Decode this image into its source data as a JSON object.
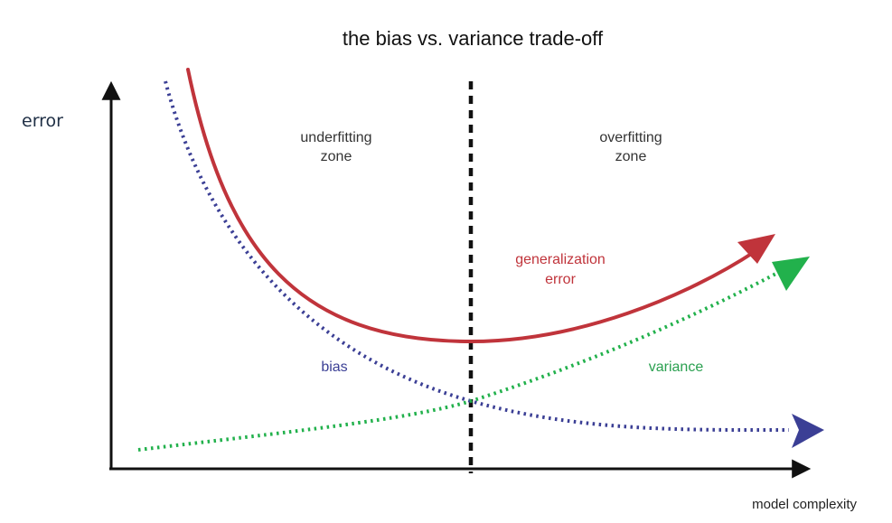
{
  "title": "the bias vs. variance trade-off",
  "y_axis_label": "error",
  "x_axis_label": "model complexity",
  "zones": {
    "left_line1": "underfitting",
    "left_line2": "zone",
    "right_line1": "overfitting",
    "right_line2": "zone"
  },
  "curves": {
    "generalization_line1": "generalization",
    "generalization_line2": "error",
    "bias": "bias",
    "variance": "variance"
  },
  "colors": {
    "generalization": "#c0343b",
    "bias": "#3b3f95",
    "variance": "#22b14c",
    "divider": "#111111",
    "axes": "#111111"
  }
}
